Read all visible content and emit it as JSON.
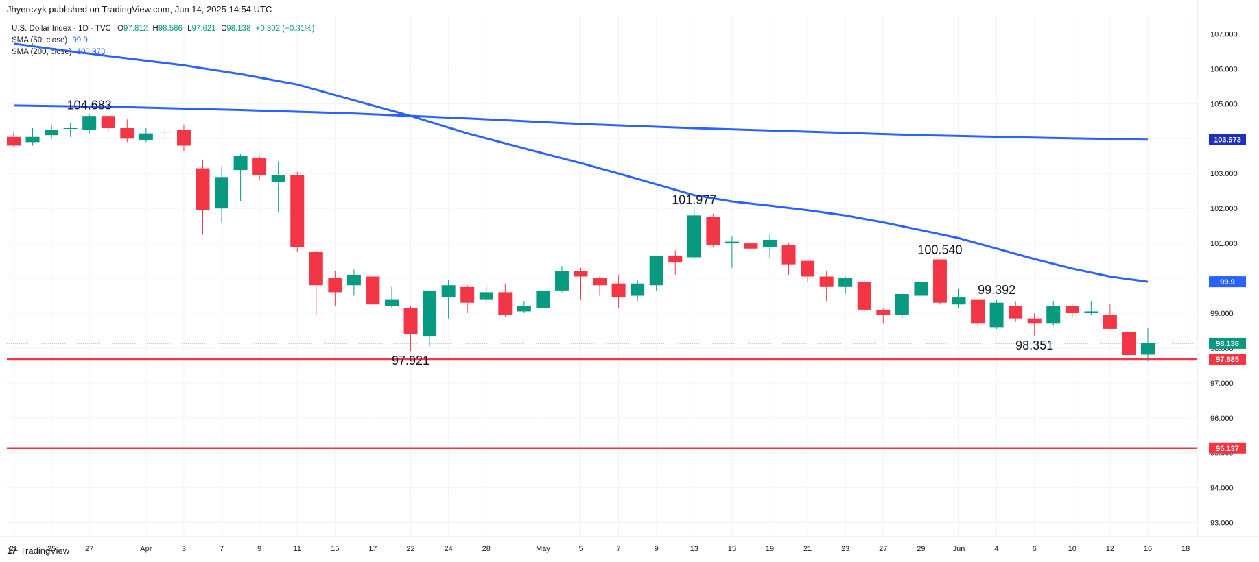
{
  "header": {
    "publisher": "Jhyerczyk published on TradingView.com, Jun 14, 2025 14:54 UTC"
  },
  "legend": {
    "symbol": "U.S. Dollar Index · 1D · TVC",
    "ohlc": {
      "o_label": "O",
      "o": "97.812",
      "h_label": "H",
      "h": "98.586",
      "l_label": "L",
      "l": "97.621",
      "c_label": "C",
      "c": "98.138",
      "change": "+0.302 (+0.31%)"
    },
    "sma50_label": "SMA (50, close)",
    "sma50_value": "99.9",
    "sma200_label": "SMA (200, close)",
    "sma200_value": "103.973"
  },
  "footer": {
    "logo_text": "TradingView"
  },
  "colors": {
    "up": "#089981",
    "down": "#f23645",
    "sma": "#2962ff",
    "level": "#f23645",
    "grid": "#f0f3fa",
    "axis_text": "#131722"
  },
  "chart_data": {
    "type": "candlestick",
    "y_axis_ticks": [
      "93.000",
      "94.000",
      "95.000",
      "96.000",
      "97.000",
      "98.000",
      "99.000",
      "100.000",
      "101.000",
      "102.000",
      "103.000",
      "104.000",
      "105.000",
      "106.000",
      "107.000"
    ],
    "ylim": [
      92.6,
      107.5
    ],
    "x_axis_ticks": [
      {
        "label": "21",
        "i": 0
      },
      {
        "label": "25",
        "i": 2
      },
      {
        "label": "27",
        "i": 4
      },
      {
        "label": "Apr",
        "i": 7
      },
      {
        "label": "3",
        "i": 9
      },
      {
        "label": "7",
        "i": 11
      },
      {
        "label": "9",
        "i": 13
      },
      {
        "label": "11",
        "i": 15
      },
      {
        "label": "15",
        "i": 17
      },
      {
        "label": "17",
        "i": 19
      },
      {
        "label": "22",
        "i": 21
      },
      {
        "label": "24",
        "i": 23
      },
      {
        "label": "28",
        "i": 25
      },
      {
        "label": "May",
        "i": 28
      },
      {
        "label": "5",
        "i": 30
      },
      {
        "label": "7",
        "i": 32
      },
      {
        "label": "9",
        "i": 34
      },
      {
        "label": "13",
        "i": 36
      },
      {
        "label": "15",
        "i": 38
      },
      {
        "label": "19",
        "i": 40
      },
      {
        "label": "21",
        "i": 42
      },
      {
        "label": "23",
        "i": 44
      },
      {
        "label": "27",
        "i": 46
      },
      {
        "label": "29",
        "i": 48
      },
      {
        "label": "Jun",
        "i": 50
      },
      {
        "label": "4",
        "i": 52
      },
      {
        "label": "6",
        "i": 54
      },
      {
        "label": "10",
        "i": 56
      },
      {
        "label": "12",
        "i": 58
      },
      {
        "label": "16",
        "i": 60
      },
      {
        "label": "18",
        "i": 62
      }
    ],
    "candles": [
      {
        "o": 104.05,
        "h": 104.2,
        "l": 103.75,
        "c": 103.8
      },
      {
        "o": 103.9,
        "h": 104.3,
        "l": 103.8,
        "c": 104.05
      },
      {
        "o": 104.1,
        "h": 104.4,
        "l": 104.0,
        "c": 104.25
      },
      {
        "o": 104.3,
        "h": 104.45,
        "l": 104.05,
        "c": 104.3
      },
      {
        "o": 104.25,
        "h": 104.7,
        "l": 104.15,
        "c": 104.65
      },
      {
        "o": 104.65,
        "h": 104.7,
        "l": 104.2,
        "c": 104.3
      },
      {
        "o": 104.3,
        "h": 104.55,
        "l": 103.9,
        "c": 104.0
      },
      {
        "o": 103.95,
        "h": 104.3,
        "l": 103.9,
        "c": 104.15
      },
      {
        "o": 104.2,
        "h": 104.3,
        "l": 104.0,
        "c": 104.2
      },
      {
        "o": 104.25,
        "h": 104.4,
        "l": 103.65,
        "c": 103.8
      },
      {
        "o": 103.15,
        "h": 103.4,
        "l": 101.25,
        "c": 101.95
      },
      {
        "o": 102.0,
        "h": 103.2,
        "l": 101.6,
        "c": 102.9
      },
      {
        "o": 103.1,
        "h": 103.55,
        "l": 102.2,
        "c": 103.5
      },
      {
        "o": 103.45,
        "h": 103.5,
        "l": 102.8,
        "c": 102.95
      },
      {
        "o": 102.75,
        "h": 103.35,
        "l": 101.9,
        "c": 102.95
      },
      {
        "o": 102.95,
        "h": 103.05,
        "l": 100.75,
        "c": 100.9
      },
      {
        "o": 100.75,
        "h": 100.8,
        "l": 98.95,
        "c": 99.8
      },
      {
        "o": 100.0,
        "h": 100.2,
        "l": 99.2,
        "c": 99.6
      },
      {
        "o": 99.8,
        "h": 100.25,
        "l": 99.5,
        "c": 100.1
      },
      {
        "o": 100.05,
        "h": 100.1,
        "l": 99.2,
        "c": 99.25
      },
      {
        "o": 99.2,
        "h": 99.75,
        "l": 99.15,
        "c": 99.4
      },
      {
        "o": 99.15,
        "h": 99.2,
        "l": 97.92,
        "c": 98.4
      },
      {
        "o": 98.35,
        "h": 99.65,
        "l": 98.05,
        "c": 99.65
      },
      {
        "o": 99.45,
        "h": 99.95,
        "l": 98.85,
        "c": 99.8
      },
      {
        "o": 99.75,
        "h": 99.8,
        "l": 99.0,
        "c": 99.3
      },
      {
        "o": 99.4,
        "h": 99.75,
        "l": 99.3,
        "c": 99.6
      },
      {
        "o": 99.6,
        "h": 99.85,
        "l": 98.9,
        "c": 98.95
      },
      {
        "o": 99.05,
        "h": 99.35,
        "l": 99.0,
        "c": 99.2
      },
      {
        "o": 99.15,
        "h": 99.7,
        "l": 99.1,
        "c": 99.65
      },
      {
        "o": 99.65,
        "h": 100.35,
        "l": 99.6,
        "c": 100.2
      },
      {
        "o": 100.2,
        "h": 100.3,
        "l": 99.4,
        "c": 100.05
      },
      {
        "o": 100.0,
        "h": 100.05,
        "l": 99.5,
        "c": 99.8
      },
      {
        "o": 99.85,
        "h": 100.1,
        "l": 99.15,
        "c": 99.45
      },
      {
        "o": 99.5,
        "h": 99.95,
        "l": 99.35,
        "c": 99.85
      },
      {
        "o": 99.8,
        "h": 100.65,
        "l": 99.65,
        "c": 100.65
      },
      {
        "o": 100.65,
        "h": 100.8,
        "l": 100.1,
        "c": 100.45
      },
      {
        "o": 100.6,
        "h": 101.98,
        "l": 100.55,
        "c": 101.8
      },
      {
        "o": 101.75,
        "h": 101.85,
        "l": 100.9,
        "c": 100.95
      },
      {
        "o": 101.0,
        "h": 101.2,
        "l": 100.3,
        "c": 101.05
      },
      {
        "o": 101.0,
        "h": 101.1,
        "l": 100.65,
        "c": 100.85
      },
      {
        "o": 100.9,
        "h": 101.25,
        "l": 100.6,
        "c": 101.1
      },
      {
        "o": 100.95,
        "h": 101.0,
        "l": 100.1,
        "c": 100.4
      },
      {
        "o": 100.5,
        "h": 100.5,
        "l": 99.9,
        "c": 100.05
      },
      {
        "o": 100.05,
        "h": 100.2,
        "l": 99.35,
        "c": 99.75
      },
      {
        "o": 99.75,
        "h": 100.05,
        "l": 99.55,
        "c": 100.0
      },
      {
        "o": 99.9,
        "h": 99.95,
        "l": 99.05,
        "c": 99.1
      },
      {
        "o": 99.1,
        "h": 99.15,
        "l": 98.7,
        "c": 98.95
      },
      {
        "o": 98.95,
        "h": 99.6,
        "l": 98.85,
        "c": 99.55
      },
      {
        "o": 99.5,
        "h": 99.95,
        "l": 99.45,
        "c": 99.9
      },
      {
        "o": 100.54,
        "h": 100.54,
        "l": 99.25,
        "c": 99.3
      },
      {
        "o": 99.25,
        "h": 99.7,
        "l": 99.15,
        "c": 99.45
      },
      {
        "o": 99.4,
        "h": 99.4,
        "l": 98.65,
        "c": 98.7
      },
      {
        "o": 98.6,
        "h": 99.39,
        "l": 98.55,
        "c": 99.3
      },
      {
        "o": 99.2,
        "h": 99.35,
        "l": 98.75,
        "c": 98.85
      },
      {
        "o": 98.85,
        "h": 99.0,
        "l": 98.35,
        "c": 98.7
      },
      {
        "o": 98.7,
        "h": 99.35,
        "l": 98.65,
        "c": 99.2
      },
      {
        "o": 99.2,
        "h": 99.25,
        "l": 98.9,
        "c": 99.0
      },
      {
        "o": 99.0,
        "h": 99.35,
        "l": 98.95,
        "c": 99.05
      },
      {
        "o": 98.95,
        "h": 99.25,
        "l": 98.55,
        "c": 98.55
      },
      {
        "o": 98.45,
        "h": 98.5,
        "l": 97.6,
        "c": 97.8
      },
      {
        "o": 97.812,
        "h": 98.586,
        "l": 97.621,
        "c": 98.138
      }
    ],
    "sma50": [
      [
        0,
        106.72
      ],
      [
        3,
        106.5
      ],
      [
        6,
        106.3
      ],
      [
        9,
        106.1
      ],
      [
        12,
        105.85
      ],
      [
        15,
        105.55
      ],
      [
        18,
        105.1
      ],
      [
        21,
        104.65
      ],
      [
        24,
        104.15
      ],
      [
        27,
        103.72
      ],
      [
        30,
        103.3
      ],
      [
        33,
        102.85
      ],
      [
        36,
        102.38
      ],
      [
        38,
        102.2
      ],
      [
        40,
        102.08
      ],
      [
        42,
        101.95
      ],
      [
        44,
        101.8
      ],
      [
        46,
        101.6
      ],
      [
        48,
        101.38
      ],
      [
        50,
        101.15
      ],
      [
        52,
        100.85
      ],
      [
        54,
        100.55
      ],
      [
        56,
        100.28
      ],
      [
        58,
        100.05
      ],
      [
        60,
        99.9
      ]
    ],
    "sma200": [
      [
        0,
        104.95
      ],
      [
        6,
        104.9
      ],
      [
        12,
        104.82
      ],
      [
        18,
        104.72
      ],
      [
        24,
        104.58
      ],
      [
        30,
        104.42
      ],
      [
        36,
        104.3
      ],
      [
        42,
        104.2
      ],
      [
        48,
        104.1
      ],
      [
        54,
        104.03
      ],
      [
        60,
        103.973
      ]
    ],
    "annotations": [
      {
        "text": "104.683",
        "i": 4,
        "y": 104.683,
        "pos": "above"
      },
      {
        "text": "97.921",
        "i": 21,
        "y": 97.921,
        "pos": "below"
      },
      {
        "text": "101.977",
        "i": 36,
        "y": 101.977,
        "pos": "above"
      },
      {
        "text": "100.540",
        "i": 49,
        "y": 100.54,
        "pos": "above"
      },
      {
        "text": "99.392",
        "i": 52,
        "y": 99.392,
        "pos": "above"
      },
      {
        "text": "98.351",
        "i": 54,
        "y": 98.351,
        "pos": "below"
      }
    ],
    "horizontal_levels": [
      {
        "value": 97.685,
        "label": "97.685"
      },
      {
        "value": 95.137,
        "label": "95.137"
      }
    ],
    "last_price": {
      "value": 98.138,
      "label": "98.138"
    },
    "sma200_label": "103.973",
    "sma50_label": "99.9"
  }
}
